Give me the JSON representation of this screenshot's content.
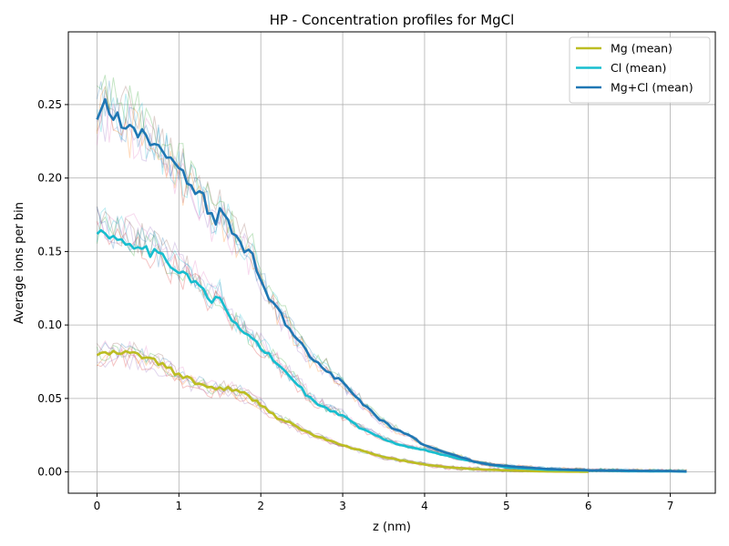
{
  "chart_data": {
    "type": "line",
    "title": "HP - Concentration profiles for MgCl",
    "xlabel": "z (nm)",
    "ylabel": "Average ions per bin",
    "xlim": [
      -0.35,
      7.55
    ],
    "ylim": [
      -0.0145,
      0.2995
    ],
    "grid": true,
    "legend_position": "top-right",
    "x_ticks": [
      0,
      1,
      2,
      3,
      4,
      5,
      6,
      7
    ],
    "x_tick_labels": [
      "0",
      "1",
      "2",
      "3",
      "4",
      "5",
      "6",
      "7"
    ],
    "y_ticks": [
      0,
      0.05,
      0.1,
      0.15,
      0.2,
      0.25
    ],
    "y_tick_labels": [
      "0.00",
      "0.05",
      "0.10",
      "0.15",
      "0.20",
      "0.25"
    ],
    "series": [
      {
        "name": "Mg (mean)",
        "color": "#bcbd22",
        "points": [
          [
            0,
            0.08
          ],
          [
            0.3,
            0.081
          ],
          [
            0.5,
            0.08
          ],
          [
            0.8,
            0.073
          ],
          [
            1.0,
            0.066
          ],
          [
            1.2,
            0.061
          ],
          [
            1.4,
            0.057
          ],
          [
            1.6,
            0.057
          ],
          [
            1.8,
            0.053
          ],
          [
            2.0,
            0.046
          ],
          [
            2.2,
            0.037
          ],
          [
            2.4,
            0.032
          ],
          [
            2.6,
            0.026
          ],
          [
            2.8,
            0.022
          ],
          [
            3.0,
            0.018
          ],
          [
            3.2,
            0.015
          ],
          [
            3.5,
            0.01
          ],
          [
            3.8,
            0.007
          ],
          [
            4.0,
            0.005
          ],
          [
            4.3,
            0.003
          ],
          [
            4.6,
            0.002
          ],
          [
            5.0,
            0.001
          ],
          [
            5.5,
            0.0003
          ],
          [
            6.0,
            0.0001
          ]
        ]
      },
      {
        "name": "Cl (mean)",
        "color": "#17becf",
        "points": [
          [
            0,
            0.165
          ],
          [
            0.2,
            0.16
          ],
          [
            0.5,
            0.155
          ],
          [
            0.8,
            0.145
          ],
          [
            1.0,
            0.138
          ],
          [
            1.2,
            0.13
          ],
          [
            1.4,
            0.115
          ],
          [
            1.5,
            0.119
          ],
          [
            1.6,
            0.106
          ],
          [
            1.8,
            0.095
          ],
          [
            2.0,
            0.085
          ],
          [
            2.2,
            0.073
          ],
          [
            2.4,
            0.063
          ],
          [
            2.6,
            0.05
          ],
          [
            2.8,
            0.043
          ],
          [
            3.0,
            0.038
          ],
          [
            3.2,
            0.03
          ],
          [
            3.4,
            0.025
          ],
          [
            3.6,
            0.02
          ],
          [
            3.8,
            0.017
          ],
          [
            4.0,
            0.015
          ],
          [
            4.2,
            0.012
          ],
          [
            4.5,
            0.008
          ],
          [
            4.8,
            0.005
          ],
          [
            5.0,
            0.003
          ],
          [
            5.5,
            0.0015
          ],
          [
            6.0,
            0.001
          ],
          [
            6.5,
            0.0005
          ],
          [
            7.0,
            0.0004
          ],
          [
            7.2,
            0.0002
          ]
        ]
      },
      {
        "name": "Mg+Cl (mean)",
        "color": "#1f77b4",
        "points": [
          [
            0,
            0.244
          ],
          [
            0.1,
            0.249
          ],
          [
            0.2,
            0.242
          ],
          [
            0.4,
            0.237
          ],
          [
            0.6,
            0.23
          ],
          [
            0.8,
            0.217
          ],
          [
            1.0,
            0.204
          ],
          [
            1.2,
            0.19
          ],
          [
            1.3,
            0.186
          ],
          [
            1.45,
            0.167
          ],
          [
            1.5,
            0.178
          ],
          [
            1.7,
            0.16
          ],
          [
            1.9,
            0.146
          ],
          [
            2.0,
            0.13
          ],
          [
            2.2,
            0.11
          ],
          [
            2.4,
            0.095
          ],
          [
            2.6,
            0.078
          ],
          [
            2.8,
            0.07
          ],
          [
            3.0,
            0.06
          ],
          [
            3.2,
            0.049
          ],
          [
            3.4,
            0.038
          ],
          [
            3.6,
            0.03
          ],
          [
            3.8,
            0.025
          ],
          [
            4.0,
            0.018
          ],
          [
            4.2,
            0.014
          ],
          [
            4.4,
            0.011
          ],
          [
            4.6,
            0.007
          ],
          [
            4.8,
            0.005
          ],
          [
            5.0,
            0.004
          ],
          [
            5.5,
            0.002
          ],
          [
            6.0,
            0.0011
          ],
          [
            6.5,
            0.0008
          ],
          [
            7.0,
            0.0006
          ],
          [
            7.2,
            0.0003
          ]
        ]
      }
    ]
  }
}
